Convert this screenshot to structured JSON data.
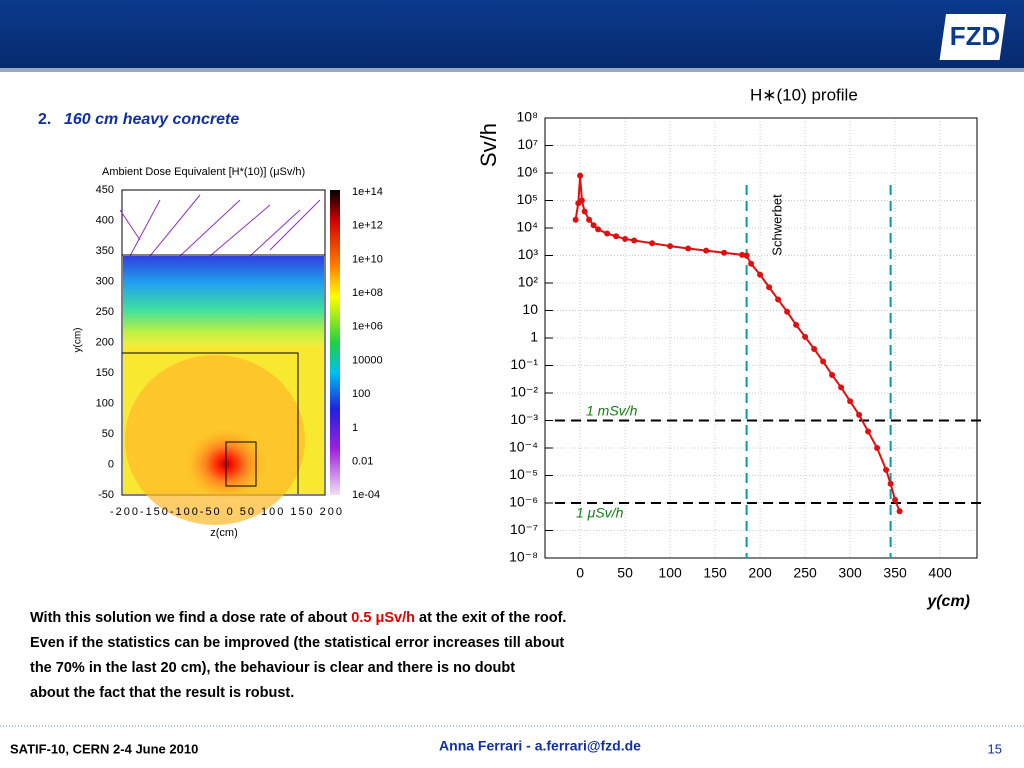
{
  "header": {
    "logo": "FZD"
  },
  "slide_title": {
    "number": "2.",
    "text": "160 cm heavy concrete"
  },
  "map": {
    "title": "Ambient Dose Equivalent [H*(10)] (μSv/h)",
    "ylabel": "y(cm)",
    "xlabel": "z(cm)",
    "yticks": [
      "450",
      "400",
      "350",
      "300",
      "250",
      "200",
      "150",
      "100",
      "50",
      "0",
      "-50"
    ],
    "xticks": "-200-150-100-50  0  50 100 150 200",
    "colorbar": [
      "1e+14",
      "1e+12",
      "1e+10",
      "1e+08",
      "1e+06",
      "10000",
      "100",
      "1",
      "0.01",
      "1e-04"
    ]
  },
  "profile": {
    "type": "line",
    "title": "H∗(10) profile",
    "ylabel": "Sv/h",
    "xlabel": "y(cm)",
    "log_y": true,
    "grid": true,
    "color": "#e01010",
    "xlim": [
      -39,
      441
    ],
    "ylim": [
      1e-08,
      100000000.0
    ],
    "xticks": [
      0,
      50,
      100,
      150,
      200,
      250,
      300,
      350,
      400
    ],
    "yticks": [
      {
        "value": 100000000.0,
        "label": "10⁸"
      },
      {
        "value": 10000000.0,
        "label": "10⁷"
      },
      {
        "value": 1000000.0,
        "label": "10⁶"
      },
      {
        "value": 100000.0,
        "label": "10⁵"
      },
      {
        "value": 10000.0,
        "label": "10⁴"
      },
      {
        "value": 1000.0,
        "label": "10³"
      },
      {
        "value": 100.0,
        "label": "10²"
      },
      {
        "value": 10.0,
        "label": "10"
      },
      {
        "value": 1,
        "label": "1"
      },
      {
        "value": 0.1,
        "label": "10⁻¹"
      },
      {
        "value": 0.01,
        "label": "10⁻²"
      },
      {
        "value": 0.001,
        "label": "10⁻³"
      },
      {
        "value": 0.0001,
        "label": "10⁻⁴"
      },
      {
        "value": 1e-05,
        "label": "10⁻⁵"
      },
      {
        "value": 1e-06,
        "label": "10⁻⁶"
      },
      {
        "value": 1e-07,
        "label": "10⁻⁷"
      },
      {
        "value": 1e-08,
        "label": "10⁻⁸"
      }
    ],
    "x": [
      -5,
      -2,
      0,
      2,
      5,
      10,
      15,
      20,
      30,
      40,
      50,
      60,
      80,
      100,
      120,
      140,
      160,
      180,
      185,
      190,
      200,
      210,
      220,
      230,
      240,
      250,
      260,
      270,
      280,
      290,
      300,
      310,
      320,
      330,
      340,
      345,
      350,
      355
    ],
    "values": [
      20000,
      80000,
      800000,
      100000,
      40000,
      20000,
      12600,
      8900,
      6300,
      5000,
      4000,
      3500,
      2800,
      2200,
      1800,
      1500,
      1260,
      1050,
      1000,
      500,
      200,
      70,
      25,
      9,
      3,
      1.1,
      0.4,
      0.14,
      0.045,
      0.016,
      0.005,
      0.0016,
      0.0004,
      0.0001,
      1.6e-05,
      5e-06,
      1.3e-06,
      5e-07
    ],
    "hlines": [
      0.001,
      1e-06
    ],
    "hline_color": "#000000",
    "vlines": [
      185,
      345
    ],
    "vline_color": "#00a0a0",
    "annotations": [
      "1 mSv/h",
      "1 μSv/h",
      "Schwerbet"
    ]
  },
  "body": {
    "line1_a": "With this solution we find a dose rate of about ",
    "line1_b": "0.5 μSv/h",
    "line1_c": " at the exit of the roof.",
    "line2": "Even if the statistics can be improved (the statistical error increases till about",
    "line3": "the 70%  in the last 20 cm), the behaviour is clear and there is no doubt",
    "line4": "about the fact that the result is robust."
  },
  "footer": {
    "left": "SATIF-10, CERN  2-4 June 2010",
    "center": "Anna Ferrari  -   a.ferrari@fzd.de",
    "page": "15"
  }
}
